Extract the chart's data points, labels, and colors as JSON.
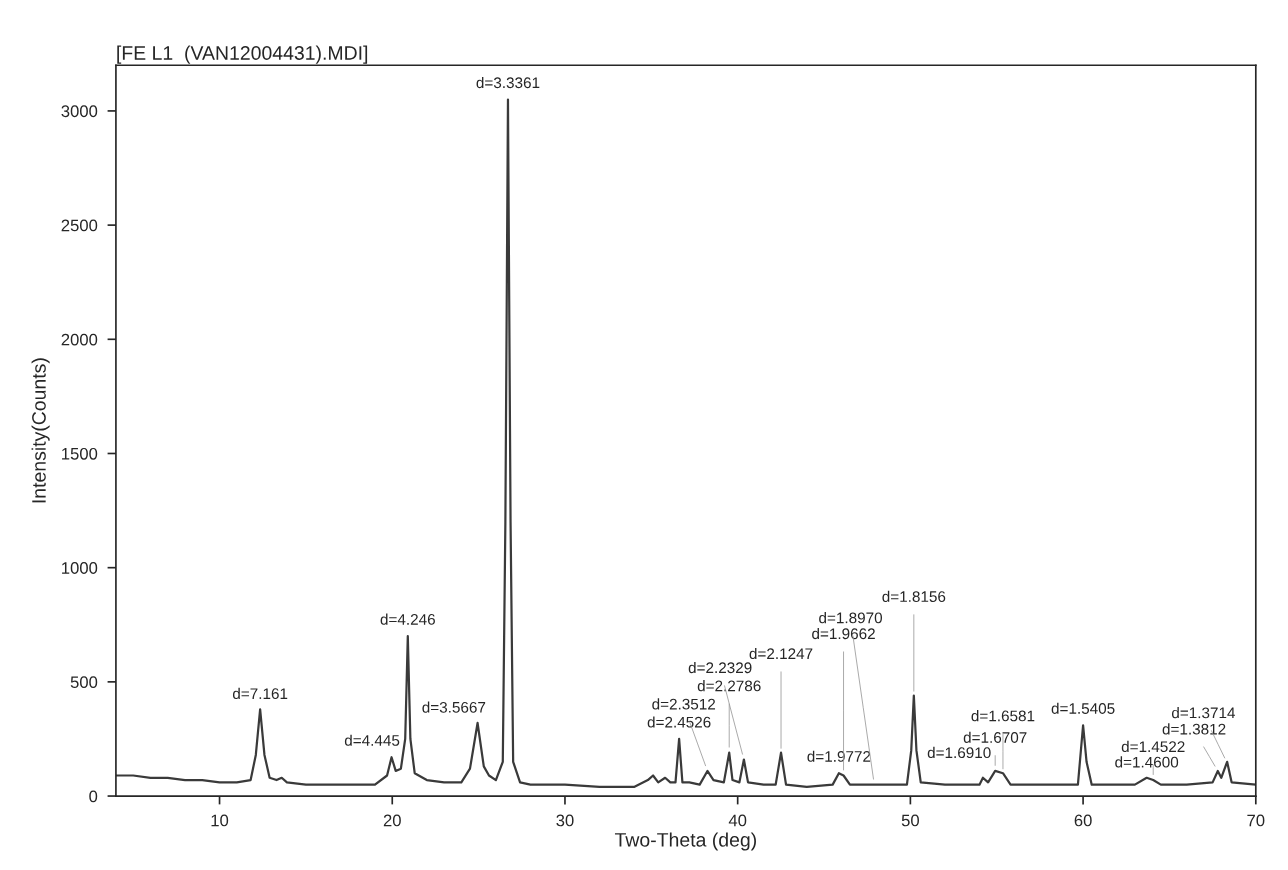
{
  "chart_data": {
    "type": "line",
    "title": "[FE L1  (VAN12004431).MDI]",
    "xlabel": "Two-Theta (deg)",
    "ylabel": "Intensity(Counts)",
    "xlim": [
      4,
      70
    ],
    "xticks": [
      10,
      20,
      30,
      40,
      50,
      60,
      70
    ],
    "ylim": [
      0,
      3200
    ],
    "yticks": [
      0,
      500,
      1000,
      1500,
      2000,
      2500,
      3000
    ],
    "grid": false,
    "series": [
      {
        "color": "#3a3a3a",
        "x": [
          4,
          5,
          6,
          7,
          8,
          9,
          10,
          11,
          11.8,
          12.1,
          12.35,
          12.6,
          12.9,
          13.3,
          13.6,
          13.9,
          15,
          17,
          19,
          19.7,
          19.96,
          20.2,
          20.5,
          20.75,
          20.9,
          21.05,
          21.3,
          22,
          23,
          24,
          24.5,
          24.94,
          25.3,
          25.6,
          26,
          26.4,
          26.55,
          26.7,
          26.85,
          27,
          27.4,
          28,
          30,
          32,
          34,
          34.8,
          35.1,
          35.4,
          35.8,
          36.1,
          36.4,
          36.61,
          36.8,
          37.2,
          37.8,
          38.25,
          38.6,
          39.2,
          39.51,
          39.7,
          40.1,
          40.36,
          40.6,
          41.5,
          42.2,
          42.51,
          42.8,
          44,
          45.5,
          45.86,
          46.13,
          46.5,
          47.91,
          49.8,
          50.05,
          50.2,
          50.35,
          50.6,
          52,
          54,
          54.2,
          54.5,
          54.91,
          55.36,
          55.8,
          57,
          59.7,
          60,
          60.2,
          60.5,
          63,
          63.68,
          64.06,
          64.5,
          66,
          67.5,
          67.8,
          68,
          68.34,
          68.6,
          70
        ],
        "values": [
          90,
          90,
          80,
          80,
          70,
          70,
          60,
          60,
          70,
          180,
          380,
          180,
          80,
          70,
          80,
          60,
          50,
          50,
          50,
          90,
          170,
          110,
          120,
          250,
          700,
          250,
          100,
          70,
          60,
          60,
          120,
          320,
          130,
          90,
          70,
          150,
          1200,
          3050,
          1200,
          150,
          60,
          50,
          50,
          40,
          40,
          70,
          90,
          60,
          80,
          60,
          60,
          250,
          60,
          60,
          50,
          110,
          70,
          60,
          190,
          70,
          60,
          160,
          60,
          50,
          50,
          190,
          50,
          40,
          50,
          100,
          90,
          50,
          50,
          50,
          200,
          440,
          200,
          60,
          50,
          50,
          80,
          60,
          110,
          100,
          50,
          50,
          50,
          310,
          150,
          50,
          50,
          80,
          70,
          50,
          50,
          60,
          110,
          80,
          150,
          60,
          50
        ]
      }
    ],
    "annotations": [
      {
        "text": "d=7.161",
        "x": 12.35,
        "y": 375
      },
      {
        "text": "d=4.445",
        "x": 19.96,
        "y": 170
      },
      {
        "text": "d=4.246",
        "x": 20.9,
        "y": 700
      },
      {
        "text": "d=3.5667",
        "x": 24.94,
        "y": 315
      },
      {
        "text": "d=3.3361",
        "x": 26.7,
        "y": 3050
      },
      {
        "text": "d=2.4526",
        "x": 36.61,
        "y": 250
      },
      {
        "text": "d=2.3512",
        "x": 38.25,
        "y": 110
      },
      {
        "text": "d=2.2786",
        "x": 39.51,
        "y": 190
      },
      {
        "text": "d=2.2329",
        "x": 40.36,
        "y": 160
      },
      {
        "text": "d=2.1247",
        "x": 42.51,
        "y": 185
      },
      {
        "text": "d=1.9772",
        "x": 45.86,
        "y": 100
      },
      {
        "text": "d=1.9662",
        "x": 46.13,
        "y": 90
      },
      {
        "text": "d=1.8970",
        "x": 47.91,
        "y": 50
      },
      {
        "text": "d=1.8156",
        "x": 50.2,
        "y": 435
      },
      {
        "text": "d=1.6910",
        "x": 54.2,
        "y": 80
      },
      {
        "text": "d=1.6707",
        "x": 54.91,
        "y": 110
      },
      {
        "text": "d=1.6581",
        "x": 55.36,
        "y": 95
      },
      {
        "text": "d=1.5405",
        "x": 60,
        "y": 310
      },
      {
        "text": "d=1.4600",
        "x": 63.68,
        "y": 75
      },
      {
        "text": "d=1.4522",
        "x": 64.06,
        "y": 70
      },
      {
        "text": "d=1.3812",
        "x": 67.8,
        "y": 110
      },
      {
        "text": "d=1.3714",
        "x": 68.34,
        "y": 145
      }
    ]
  }
}
